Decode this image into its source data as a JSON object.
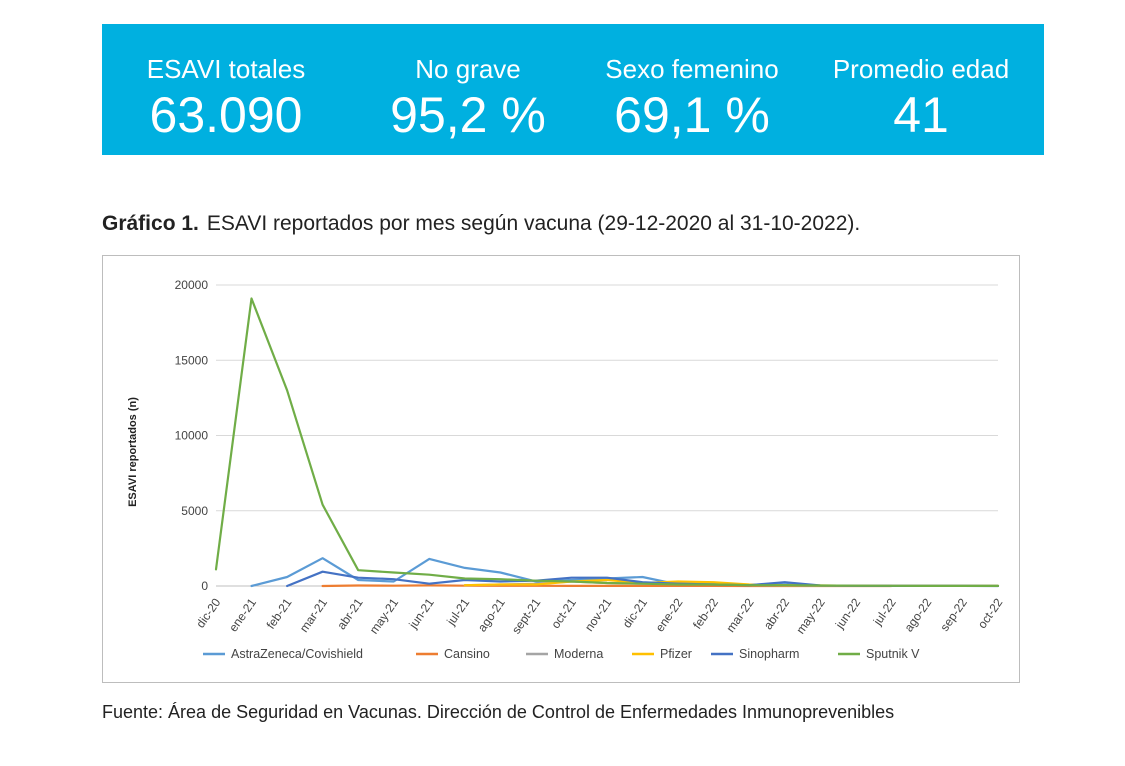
{
  "kpis": [
    {
      "label": "ESAVI totales",
      "value": "63.090"
    },
    {
      "label": "No grave",
      "value": "95,2 %"
    },
    {
      "label": "Sexo femenino",
      "value": "69,1 %"
    },
    {
      "label": "Promedio edad",
      "value": "41"
    }
  ],
  "colors": {
    "banner": "#00b0e0",
    "astrazeneca": "#5b9bd5",
    "cansino": "#ed7d31",
    "moderna": "#a5a5a5",
    "pfizer": "#ffc000",
    "sinopharm": "#4472c4",
    "sputnik": "#70ad47"
  },
  "heading": {
    "prefix": "Gráfico 1.",
    "text": "ESAVI reportados por mes según vacuna (29-12-2020 al 31-10-2022)."
  },
  "source": "Fuente: Área de Seguridad en Vacunas. Dirección de Control de Enfermedades Inmunoprevenibles",
  "chart_data": {
    "type": "line",
    "title": "",
    "xlabel": "",
    "ylabel": "ESAVI reportados (n)",
    "ylim": [
      0,
      20000
    ],
    "yticks": [
      0,
      5000,
      10000,
      15000,
      20000
    ],
    "grid": true,
    "legend": "bottom",
    "categories": [
      "dic-20",
      "ene-21",
      "feb-21",
      "mar-21",
      "abr-21",
      "may-21",
      "jun-21",
      "jul-21",
      "ago-21",
      "sept-21",
      "oct-21",
      "nov-21",
      "dic-21",
      "ene-22",
      "feb-22",
      "mar-22",
      "abr-22",
      "may-22",
      "jun-22",
      "jul-22",
      "ago-22",
      "sep-22",
      "oct-22"
    ],
    "series": [
      {
        "name": "AstraZeneca/Covishield",
        "color_key": "astrazeneca",
        "values": [
          null,
          0,
          600,
          1850,
          400,
          300,
          1800,
          1200,
          900,
          300,
          400,
          500,
          600,
          100,
          100,
          30,
          100,
          20,
          10,
          5,
          null,
          null,
          null
        ]
      },
      {
        "name": "Cansino",
        "color_key": "cansino",
        "values": [
          null,
          null,
          null,
          0,
          30,
          20,
          40,
          20,
          10,
          10,
          5,
          5,
          5,
          5,
          5,
          0,
          0,
          0,
          0,
          0,
          null,
          null,
          null
        ]
      },
      {
        "name": "Moderna",
        "color_key": "moderna",
        "values": [
          null,
          null,
          null,
          null,
          null,
          null,
          null,
          50,
          100,
          150,
          300,
          200,
          150,
          200,
          150,
          50,
          30,
          10,
          10,
          5,
          5,
          5,
          5
        ]
      },
      {
        "name": "Pfizer",
        "color_key": "pfizer",
        "values": [
          null,
          null,
          null,
          null,
          null,
          null,
          null,
          50,
          100,
          100,
          300,
          400,
          200,
          300,
          250,
          100,
          50,
          30,
          20,
          10,
          5,
          5,
          5
        ]
      },
      {
        "name": "Sinopharm",
        "color_key": "sinopharm",
        "values": [
          null,
          null,
          0,
          950,
          550,
          450,
          150,
          400,
          300,
          350,
          550,
          550,
          250,
          150,
          100,
          50,
          250,
          30,
          10,
          5,
          5,
          5,
          0
        ]
      },
      {
        "name": "Sputnik V",
        "color_key": "sputnik",
        "values": [
          1100,
          19100,
          13000,
          5400,
          1050,
          900,
          750,
          500,
          450,
          350,
          300,
          200,
          150,
          100,
          100,
          50,
          50,
          30,
          20,
          10,
          5,
          5,
          5
        ]
      }
    ]
  }
}
